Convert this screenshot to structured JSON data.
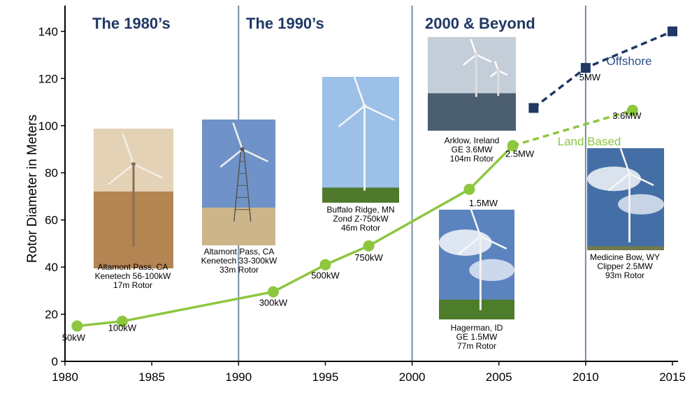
{
  "chart_data": {
    "type": "line",
    "title": "",
    "xlabel": "",
    "ylabel": "Rotor Diameter in Meters",
    "xlim": [
      1980,
      2015
    ],
    "ylim": [
      0,
      145
    ],
    "xticks": [
      1980,
      1985,
      1990,
      1995,
      2000,
      2005,
      2010,
      2015
    ],
    "yticks": [
      0,
      20,
      40,
      60,
      80,
      100,
      120,
      140
    ],
    "grid": false,
    "eras": [
      {
        "label": "The 1980’s",
        "start": 1980
      },
      {
        "label": "The 1990’s",
        "start": 1990
      },
      {
        "label": "2000 & Beyond",
        "start": 2000
      }
    ],
    "dividers": [
      1990,
      2000,
      2010
    ],
    "series": [
      {
        "name": "Land Based",
        "color": "#8dc63f",
        "marker": "circle",
        "x": [
          1980.7,
          1983.3,
          1992.0,
          1995.0,
          1997.5,
          2003.3,
          2005.8,
          2012.7
        ],
        "y": [
          15,
          17,
          29.5,
          41,
          49,
          73,
          91.5,
          106.5
        ],
        "point_labels": [
          "50kW",
          "100kW",
          "300kW",
          "500kW",
          "750kW",
          "1.5MW",
          "2.5MW",
          "3.6MW"
        ],
        "dashed_from_index": 6
      },
      {
        "name": "Offshore",
        "color": "#1f3864",
        "marker": "square",
        "x": [
          2007.0,
          2010.0,
          2015.0
        ],
        "y": [
          107.5,
          124.5,
          140
        ],
        "point_labels": [
          "",
          "5MW",
          ""
        ],
        "dashed_from_index": 0
      }
    ],
    "photo_captions": [
      [
        "Altamont Pass, CA",
        "Kenetech 56-100kW",
        "17m Rotor"
      ],
      [
        "Altamont Pass, CA",
        "Kenetech 33-300kW",
        "33m Rotor"
      ],
      [
        "Buffalo Ridge, MN",
        "Zond Z-750kW",
        "46m Rotor"
      ],
      [
        "Arklow, Ireland",
        "GE 3.6MW",
        "104m Rotor"
      ],
      [
        "Hagerman, ID",
        "GE 1.5MW",
        "77m Rotor"
      ],
      [
        "Medicine Bow, WY",
        "Clipper 2.5MW",
        "93m Rotor"
      ]
    ],
    "photos": [
      {
        "kind": "desert",
        "sky": "#e3d2b6",
        "ground": "#b48453"
      },
      {
        "kind": "lattice",
        "sky": "#6f93c8",
        "ground": "#cdb58a"
      },
      {
        "kind": "field",
        "sky": "#9cc0e8",
        "ground": "#4f7a2d"
      },
      {
        "kind": "sea",
        "sky": "#c4ced9",
        "ground": "#4c5f70"
      },
      {
        "kind": "cloudy",
        "sky": "#5b84be",
        "ground": "#4d7d2a"
      },
      {
        "kind": "bluesky",
        "sky": "#446ea6",
        "ground": "#6e7b4c"
      }
    ]
  }
}
